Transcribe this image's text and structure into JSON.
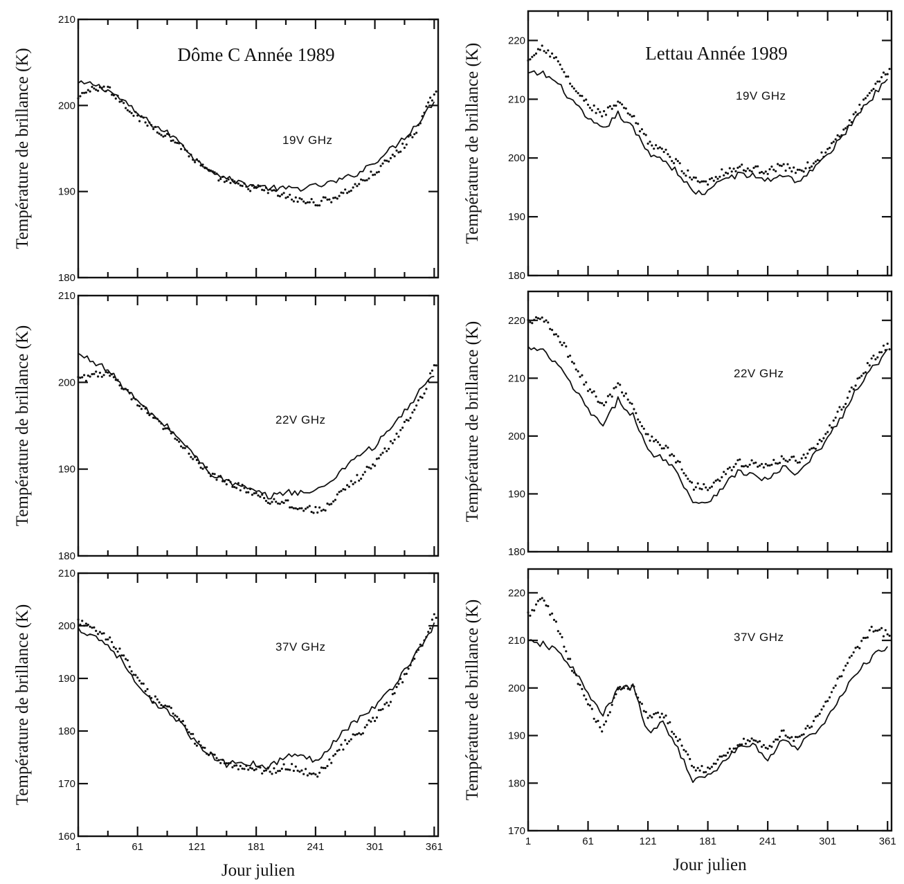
{
  "chart_data": [
    {
      "type": "line",
      "title": "Dôme C   Année 1989",
      "annotation": "19V  GHz",
      "ylabel": "Température de brillance (K)",
      "xlabel": "",
      "xlim": [
        1,
        365
      ],
      "ylim": [
        180,
        210
      ],
      "xticks": [
        1,
        61,
        121,
        181,
        241,
        301,
        361
      ],
      "yticks": [
        180,
        190,
        200,
        210
      ],
      "yticklabels": [
        "180",
        "190",
        "200",
        "210"
      ],
      "xticklabels": [],
      "series": [
        {
          "style": "solid",
          "x": [
            1,
            16,
            31,
            46,
            61,
            76,
            91,
            106,
            121,
            136,
            151,
            166,
            181,
            196,
            211,
            226,
            241,
            256,
            271,
            286,
            301,
            316,
            331,
            346,
            361
          ],
          "y": [
            202.5,
            202.5,
            201.8,
            200.6,
            199,
            197.8,
            196.8,
            195.6,
            193.5,
            192.5,
            191.5,
            191,
            190.6,
            190.4,
            190.3,
            190.4,
            190.6,
            191,
            191.5,
            192.3,
            193.5,
            194.8,
            196.3,
            198.2,
            200.5
          ]
        },
        {
          "style": "dotted",
          "x": [
            1,
            16,
            31,
            46,
            61,
            76,
            91,
            106,
            121,
            136,
            151,
            166,
            181,
            196,
            211,
            226,
            241,
            256,
            271,
            286,
            301,
            316,
            331,
            346,
            361
          ],
          "y": [
            201.2,
            202,
            202,
            200.4,
            198.6,
            197.6,
            196.5,
            195.2,
            193.4,
            192,
            191.2,
            190.6,
            190.4,
            190,
            189.4,
            188.9,
            188.7,
            189.1,
            189.9,
            191,
            192.2,
            193.7,
            195.4,
            197.7,
            201.5
          ]
        }
      ]
    },
    {
      "type": "line",
      "title": "Lettau  Année 1989",
      "annotation": "19V  GHz",
      "ylabel": "Température de brillance (K)",
      "xlabel": "",
      "xlim": [
        1,
        365
      ],
      "ylim": [
        180,
        225
      ],
      "xticks": [
        1,
        61,
        121,
        181,
        241,
        301,
        361
      ],
      "yticks": [
        180,
        190,
        200,
        210,
        220
      ],
      "yticklabels": [
        "180",
        "190",
        "200",
        "210",
        "220"
      ],
      "xticklabels": [],
      "series": [
        {
          "style": "solid",
          "x": [
            1,
            16,
            31,
            46,
            61,
            76,
            91,
            106,
            121,
            136,
            151,
            166,
            181,
            196,
            211,
            226,
            241,
            256,
            271,
            286,
            301,
            316,
            331,
            346,
            361
          ],
          "y": [
            214.3,
            214.4,
            212.6,
            209.5,
            206.5,
            204.8,
            207.5,
            205,
            201,
            199.8,
            197.5,
            194.2,
            194.1,
            196.5,
            197.1,
            197,
            196.2,
            197.2,
            196,
            198,
            200.5,
            203.7,
            207.5,
            210.4,
            213.7
          ]
        },
        {
          "style": "dotted",
          "x": [
            1,
            16,
            31,
            46,
            61,
            76,
            91,
            106,
            121,
            136,
            151,
            166,
            181,
            196,
            211,
            226,
            241,
            256,
            271,
            286,
            301,
            316,
            331,
            346,
            361
          ],
          "y": [
            217.2,
            219,
            216.3,
            212,
            209,
            207.3,
            209.3,
            206.8,
            202.8,
            201.3,
            199,
            196.4,
            196,
            197.6,
            198.3,
            198.1,
            197.9,
            198.6,
            197.8,
            199,
            201.3,
            204.3,
            208,
            211.4,
            214.8
          ]
        }
      ]
    },
    {
      "type": "line",
      "title": "",
      "annotation": "22V  GHz",
      "ylabel": "Température de brillance (K)",
      "xlabel": "",
      "xlim": [
        1,
        365
      ],
      "ylim": [
        180,
        210
      ],
      "xticks": [
        1,
        61,
        121,
        181,
        241,
        301,
        361
      ],
      "yticks": [
        180,
        190,
        200,
        210
      ],
      "yticklabels": [
        "180",
        "190",
        "200",
        "210"
      ],
      "xticklabels": [],
      "series": [
        {
          "style": "solid",
          "x": [
            1,
            16,
            31,
            46,
            61,
            76,
            91,
            106,
            121,
            136,
            151,
            166,
            181,
            196,
            211,
            226,
            241,
            256,
            271,
            286,
            301,
            316,
            331,
            346,
            361
          ],
          "y": [
            203.2,
            202.5,
            201.4,
            199.6,
            197.8,
            196.2,
            194.9,
            193.2,
            191.2,
            189.5,
            188.6,
            188,
            187.3,
            186.8,
            187.4,
            187.3,
            187.4,
            188.6,
            190.3,
            191.8,
            192.6,
            194.6,
            196.6,
            198.9,
            201
          ]
        },
        {
          "style": "dotted",
          "x": [
            1,
            16,
            31,
            46,
            61,
            76,
            91,
            106,
            121,
            136,
            151,
            166,
            181,
            196,
            211,
            226,
            241,
            256,
            271,
            286,
            301,
            316,
            331,
            346,
            361
          ],
          "y": [
            200.2,
            200.9,
            201.1,
            199.3,
            197.5,
            195.9,
            194.5,
            192.9,
            191,
            189.2,
            188.5,
            187.9,
            187.2,
            186.3,
            186.2,
            185.4,
            185.3,
            185.8,
            187.7,
            189.2,
            190.7,
            192.7,
            195.1,
            197.9,
            201.6
          ]
        }
      ]
    },
    {
      "type": "line",
      "title": "",
      "annotation": "22V  GHz",
      "ylabel": "Température de brillance (K)",
      "xlabel": "",
      "xlim": [
        1,
        365
      ],
      "ylim": [
        180,
        225
      ],
      "xticks": [
        1,
        61,
        121,
        181,
        241,
        301,
        361
      ],
      "yticks": [
        180,
        190,
        200,
        210,
        220
      ],
      "yticklabels": [
        "180",
        "190",
        "200",
        "210",
        "220"
      ],
      "xticklabels": [],
      "series": [
        {
          "style": "solid",
          "x": [
            1,
            16,
            31,
            46,
            61,
            76,
            91,
            106,
            121,
            136,
            151,
            166,
            181,
            196,
            211,
            226,
            241,
            256,
            271,
            286,
            301,
            316,
            331,
            346,
            361
          ],
          "y": [
            215.2,
            214.6,
            212.2,
            208.4,
            204.6,
            201.6,
            206.3,
            203.6,
            197.3,
            196.3,
            193.6,
            188.6,
            188.6,
            191.3,
            193.8,
            193.3,
            192.3,
            194.6,
            193.3,
            196.3,
            199.6,
            203.6,
            208.3,
            211.8,
            214.6
          ]
        },
        {
          "style": "dotted",
          "x": [
            1,
            16,
            31,
            46,
            61,
            76,
            91,
            106,
            121,
            136,
            151,
            166,
            181,
            196,
            211,
            226,
            241,
            256,
            271,
            286,
            301,
            316,
            331,
            346,
            361
          ],
          "y": [
            219.5,
            220.5,
            217.3,
            212.8,
            208.3,
            205.3,
            208.8,
            205.3,
            199.8,
            198.3,
            195.6,
            191.3,
            191.3,
            193.3,
            195.3,
            195.3,
            194.6,
            196.3,
            195.8,
            197.6,
            200.6,
            205.3,
            209.6,
            213.3,
            215.6
          ]
        }
      ]
    },
    {
      "type": "line",
      "title": "",
      "annotation": "37V  GHz",
      "ylabel": "Température de brillance (K)",
      "xlabel": "Jour julien",
      "xlim": [
        1,
        365
      ],
      "ylim": [
        160,
        210
      ],
      "xticks": [
        1,
        61,
        121,
        181,
        241,
        301,
        361
      ],
      "yticks": [
        160,
        170,
        180,
        190,
        200,
        210
      ],
      "yticklabels": [
        "160",
        "170",
        "180",
        "190",
        "200",
        "210"
      ],
      "xticklabels": [
        "1",
        "61",
        "121",
        "181",
        "241",
        "301",
        "361"
      ],
      "series": [
        {
          "style": "solid",
          "x": [
            1,
            16,
            31,
            46,
            61,
            76,
            91,
            106,
            121,
            136,
            151,
            166,
            181,
            196,
            211,
            226,
            241,
            256,
            271,
            286,
            301,
            316,
            331,
            346,
            361
          ],
          "y": [
            199.3,
            198.3,
            196.3,
            193.3,
            188.4,
            185.3,
            183.6,
            181.6,
            177.3,
            175.3,
            173.6,
            174.3,
            173.6,
            173.3,
            175.3,
            175.3,
            174.3,
            177.3,
            180.3,
            182.6,
            184.6,
            187.6,
            191.6,
            195.6,
            200.3
          ]
        },
        {
          "style": "dotted",
          "x": [
            1,
            16,
            31,
            46,
            61,
            76,
            91,
            106,
            121,
            136,
            151,
            166,
            181,
            196,
            211,
            226,
            241,
            256,
            271,
            286,
            301,
            316,
            331,
            346,
            361
          ],
          "y": [
            200.6,
            199.6,
            197.6,
            194.6,
            189.6,
            186.3,
            184.3,
            182.3,
            177.6,
            175.3,
            173.3,
            173.3,
            172.8,
            172.3,
            173.3,
            172.6,
            171.6,
            174.3,
            177.6,
            179.6,
            182.6,
            185.6,
            190.6,
            195.3,
            202
          ]
        }
      ]
    },
    {
      "type": "line",
      "title": "",
      "annotation": "37V  GHz",
      "ylabel": "Température de brillance (K)",
      "xlabel": "Jour julien",
      "xlim": [
        1,
        365
      ],
      "ylim": [
        170,
        225
      ],
      "xticks": [
        1,
        61,
        121,
        181,
        241,
        301,
        361
      ],
      "yticks": [
        170,
        180,
        190,
        200,
        210,
        220
      ],
      "yticklabels": [
        "170",
        "180",
        "190",
        "200",
        "210",
        "220"
      ],
      "xticklabels": [
        "1",
        "61",
        "121",
        "181",
        "241",
        "301",
        "361"
      ],
      "series": [
        {
          "style": "solid",
          "x": [
            1,
            16,
            31,
            46,
            61,
            76,
            91,
            106,
            121,
            136,
            151,
            166,
            181,
            196,
            211,
            226,
            241,
            256,
            271,
            286,
            301,
            316,
            331,
            346,
            361
          ],
          "y": [
            209.6,
            209.2,
            207.6,
            204.2,
            198.6,
            194.3,
            199.6,
            200.3,
            190.6,
            192.6,
            187.3,
            180.6,
            181.3,
            184.3,
            187.3,
            188.3,
            184.6,
            189.3,
            187.6,
            190.3,
            193.6,
            198.6,
            203.6,
            206.6,
            208.6
          ]
        },
        {
          "style": "dotted",
          "x": [
            1,
            16,
            31,
            46,
            61,
            76,
            91,
            106,
            121,
            136,
            151,
            166,
            181,
            196,
            211,
            226,
            241,
            256,
            271,
            286,
            301,
            316,
            331,
            346,
            361
          ],
          "y": [
            215.3,
            219.3,
            212.3,
            203.6,
            196.3,
            191.3,
            199.3,
            200.6,
            193.6,
            194.6,
            189.3,
            183.6,
            182.6,
            185.6,
            188.3,
            189.3,
            187.3,
            190.6,
            189.3,
            192.3,
            197.3,
            203.6,
            208.6,
            212.6,
            211.3
          ]
        }
      ]
    }
  ]
}
